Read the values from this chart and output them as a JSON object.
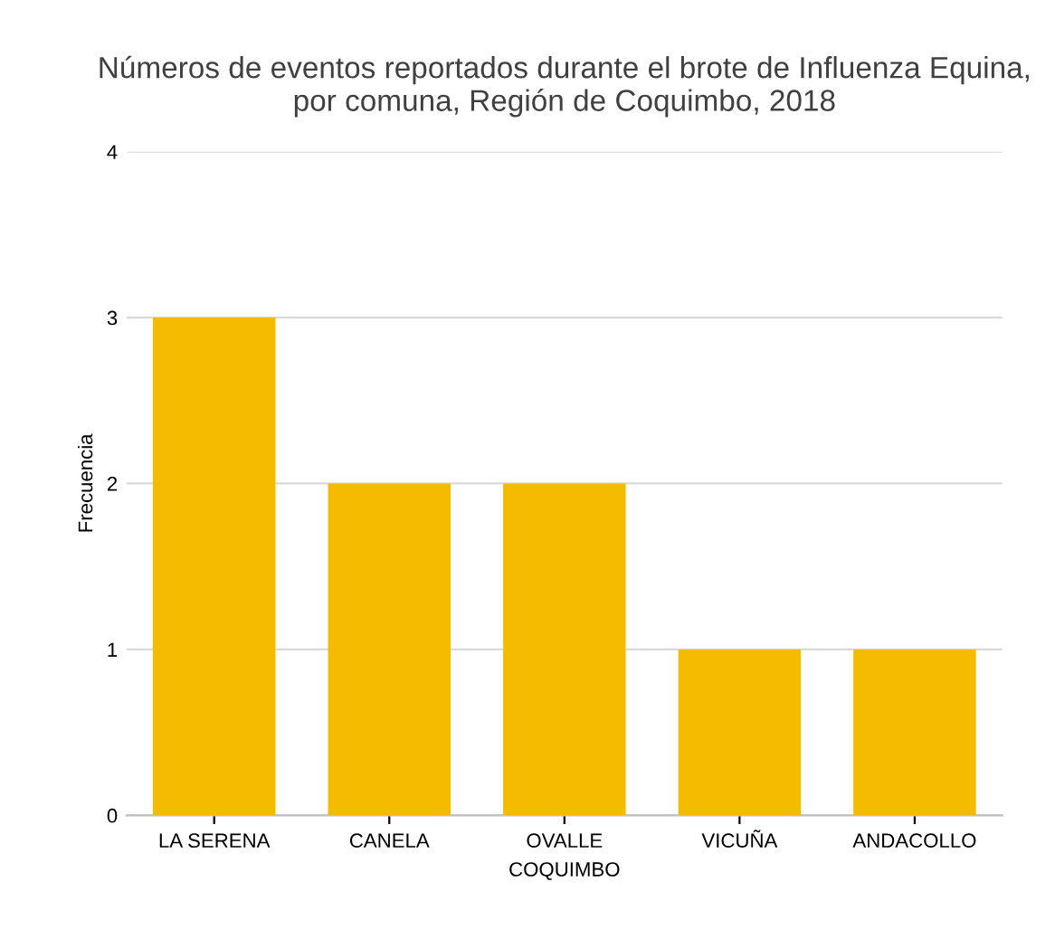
{
  "chart_data": {
    "type": "bar",
    "title": "Números de eventos reportados durante el brote de Influenza Equina, por comuna, Región de Coquimbo, 2018",
    "categories": [
      "LA SERENA",
      "CANELA",
      "OVALLE",
      "VICUÑA",
      "ANDACOLLO"
    ],
    "values": [
      3,
      2,
      2,
      1,
      1
    ],
    "color": "#f5bb00",
    "xlabel": "COQUIMBO",
    "ylabel": "Frecuencia",
    "ylim": [
      0,
      4
    ],
    "yticks": [
      0,
      1,
      2,
      3,
      4
    ],
    "grid": "y"
  }
}
